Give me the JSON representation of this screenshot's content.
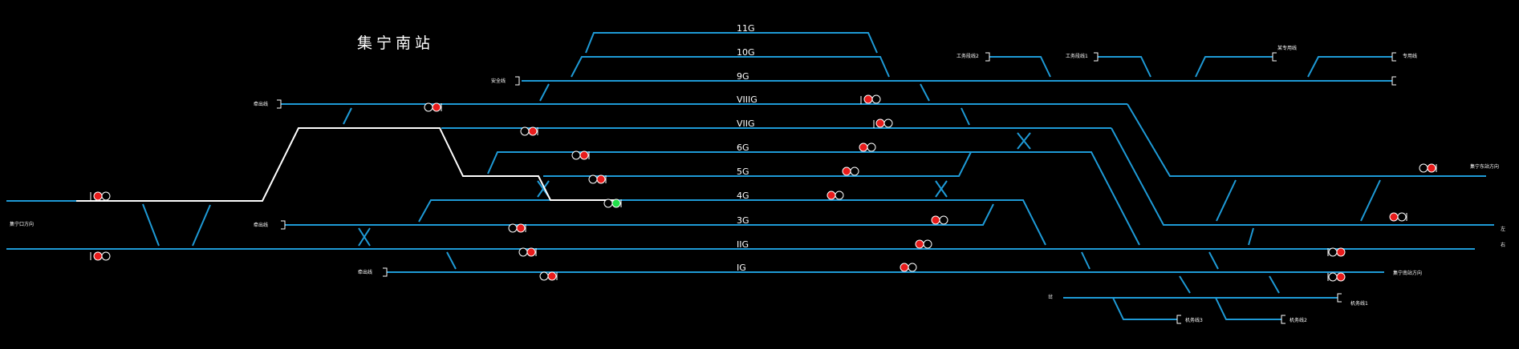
{
  "station_title": "集宁南站",
  "tracks": [
    "11G",
    "10G",
    "9G",
    "VIIIG",
    "VIIG",
    "6G",
    "5G",
    "4G",
    "3G",
    "IIG",
    "IG"
  ],
  "labels": {
    "anquan_xian": "安全线",
    "qiantui_xian_a": "牵出线",
    "qiantui_xian_b": "牵出线",
    "qiantui_xian_c": "牵出线",
    "left_entry": "集宁口方向",
    "gongwu_xian2": "工务段线2",
    "gongwu_xian1": "工务段线1",
    "zhuanyong_xian1": "某专用线",
    "zhuanyong_xian2": "专用线",
    "right_top_entry": "集宁东站方向",
    "right_bottom_entry": "集宁南站方向",
    "right_edge_a": "左",
    "right_edge_b": "右",
    "small_left_bottom": "岔",
    "jiwu_xian1": "机务线1",
    "jiwu_xian2": "机务线2",
    "jiwu_xian3": "机务线3"
  },
  "colors": {
    "background": "#000000",
    "track": "#1e9ad6",
    "route": "#ffffff",
    "signal_stop": "#e81b1b",
    "signal_proceed": "#22e04a",
    "signal_off": "#000000",
    "text": "#ffffff"
  }
}
